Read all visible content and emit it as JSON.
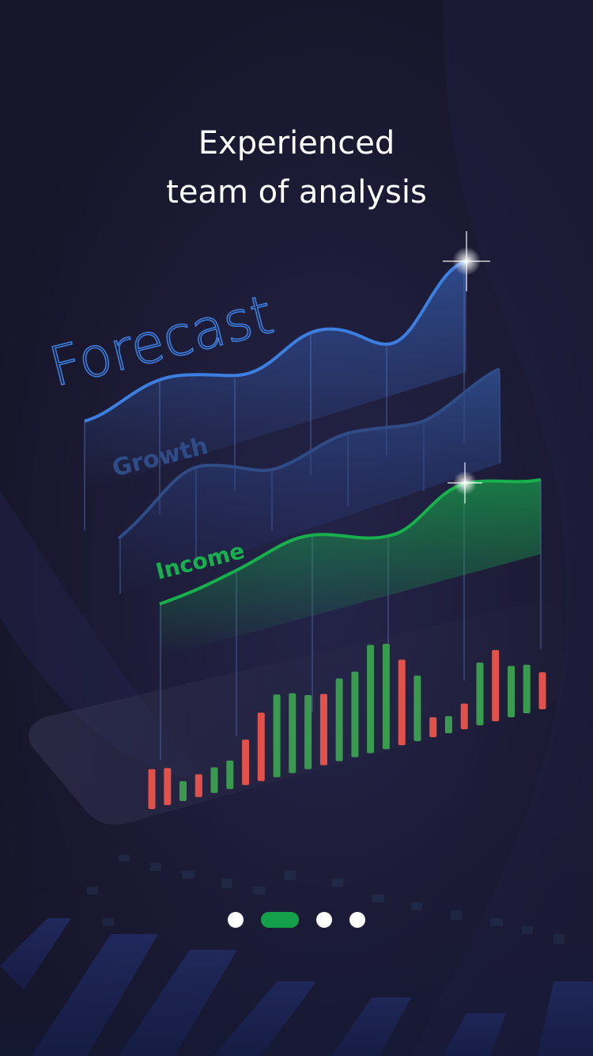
{
  "headline": {
    "line1": "Experienced",
    "line2": "team of analysis"
  },
  "chart_labels": {
    "forecast": "Forecast",
    "growth": "Growth",
    "income": "Income"
  },
  "pagination": {
    "count": 4,
    "active_index": 1,
    "active_color": "#14a04a",
    "dot_color": "#ffffff"
  },
  "colors": {
    "background": "#1a1830",
    "forecast_line": "#3d7fe0",
    "growth_line": "#2f4c86",
    "income_line": "#18b04c",
    "bar_up": "#3a9a50",
    "bar_down": "#e0524a"
  },
  "chart_data": {
    "type": "bar",
    "series": [
      {
        "values": [
          -14,
          -13,
          -7,
          -8,
          -9,
          -10,
          -16,
          -24,
          -29,
          -28,
          -26,
          -25,
          -29,
          -30,
          -38,
          -37,
          -30,
          -23,
          -7,
          -6,
          -9,
          -22,
          -25,
          -18,
          -17,
          -13
        ]
      }
    ],
    "directions": [
      "down",
      "down",
      "up",
      "down",
      "up",
      "up",
      "down",
      "down",
      "up",
      "up",
      "up",
      "down",
      "up",
      "up",
      "up",
      "up",
      "down",
      "up",
      "down",
      "up",
      "down",
      "up",
      "down",
      "up",
      "up",
      "down"
    ]
  }
}
